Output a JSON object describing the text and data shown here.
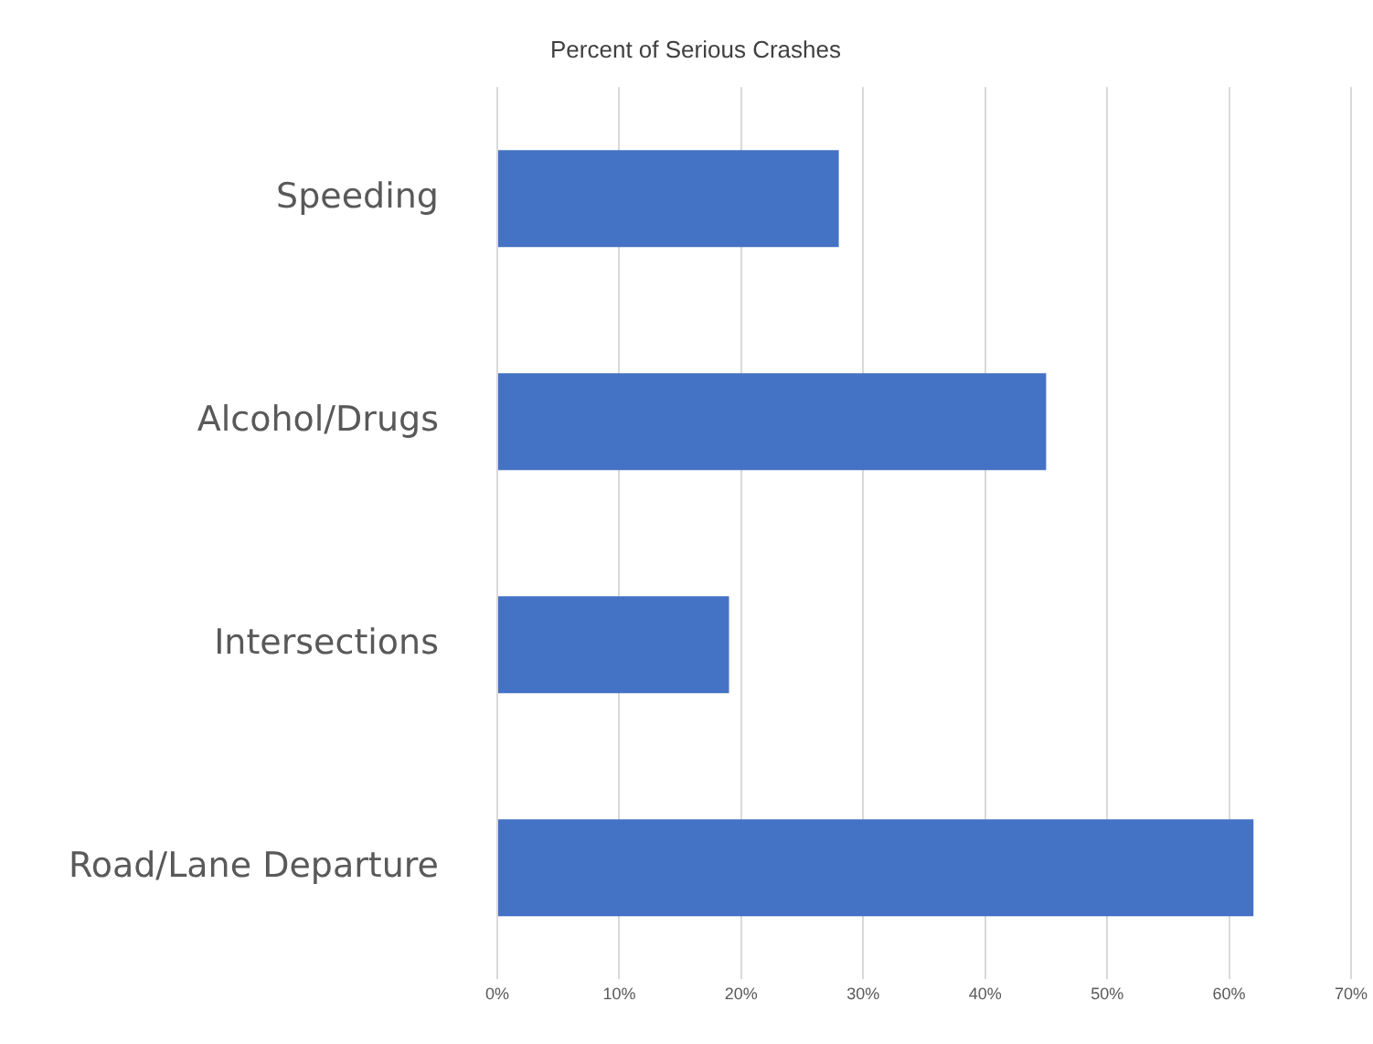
{
  "chart_data": {
    "type": "bar",
    "orientation": "horizontal",
    "title": "Percent of Serious Crashes",
    "categories": [
      "Speeding",
      "Alcohol/Drugs",
      "Intersections",
      "Road/Lane Departure"
    ],
    "values": [
      28,
      45,
      19,
      62
    ],
    "color": "#4472c4",
    "xlim": [
      0,
      70
    ],
    "xticks": [
      {
        "value": 0,
        "label": "0%"
      },
      {
        "value": 10,
        "label": "10%"
      },
      {
        "value": 20,
        "label": "20%"
      },
      {
        "value": 30,
        "label": "30%"
      },
      {
        "value": 40,
        "label": "40%"
      },
      {
        "value": 50,
        "label": "50%"
      },
      {
        "value": 60,
        "label": "60%"
      },
      {
        "value": 70,
        "label": "70%"
      }
    ],
    "grid": "x",
    "legend": false
  }
}
